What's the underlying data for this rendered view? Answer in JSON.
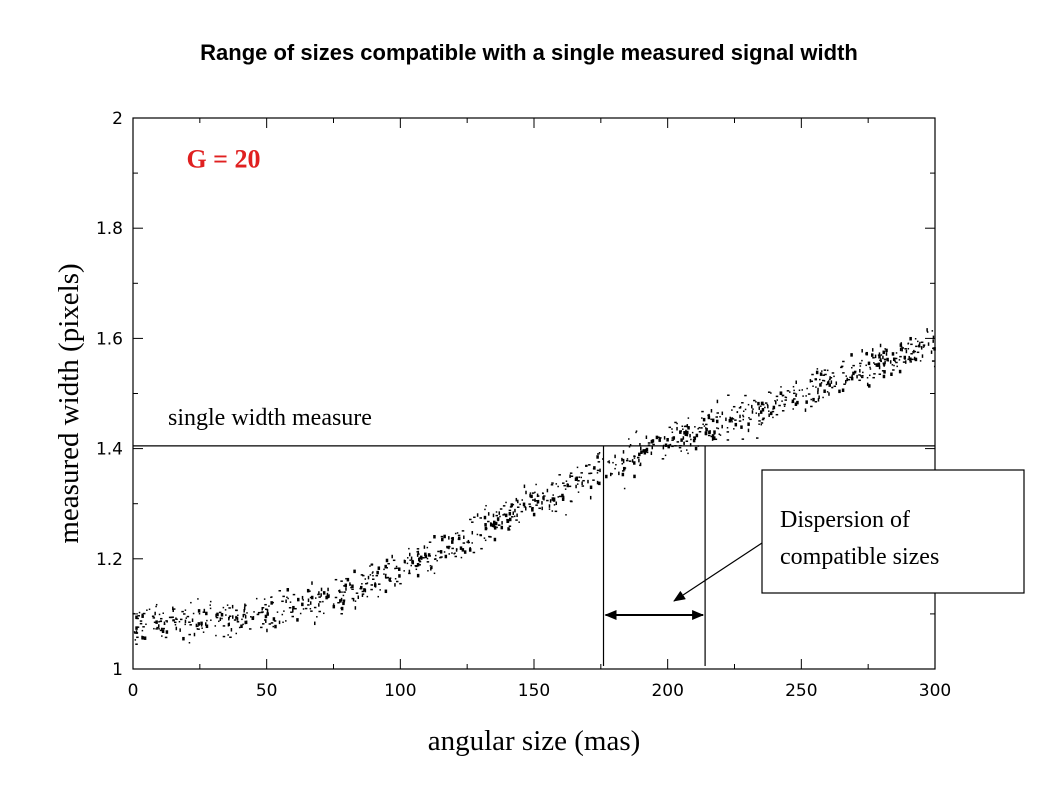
{
  "page": {
    "title": "Range of sizes compatible with a single measured signal width"
  },
  "chart_data": {
    "type": "scatter",
    "title": "Range of sizes compatible with a single measured signal width",
    "xlabel": "angular size (mas)",
    "ylabel": "measured width (pixels)",
    "xlim": [
      0,
      300
    ],
    "ylim": [
      1,
      2
    ],
    "xticks": [
      0,
      50,
      100,
      150,
      200,
      250,
      300
    ],
    "yticks": [
      1,
      1.2,
      1.4,
      1.6,
      1.8,
      2
    ],
    "x_tick_labels": [
      "0",
      "50",
      "100",
      "150",
      "200",
      "250",
      "300"
    ],
    "y_tick_labels": [
      "1",
      "1.2",
      "1.4",
      "1.6",
      "1.8",
      "2"
    ],
    "grid": false,
    "series": [
      {
        "trend": {
          "x": [
            0,
            25,
            50,
            75,
            100,
            125,
            150,
            175,
            200,
            225,
            250,
            275,
            300
          ],
          "y": [
            1.08,
            1.085,
            1.1,
            1.135,
            1.18,
            1.24,
            1.3,
            1.36,
            1.41,
            1.45,
            1.5,
            1.55,
            1.59
          ]
        },
        "scatter_spread": 0.03,
        "point_count": 1100,
        "color": "#000000"
      }
    ],
    "annotations": {
      "panel_label": {
        "text": "G = 20",
        "color": "#e02020",
        "x": 20,
        "y": 1.91
      },
      "measure_line": {
        "y": 1.405,
        "label": "single width measure"
      },
      "range_lines": {
        "x_low": 176,
        "x_high": 214
      },
      "dispersion_box": {
        "line1": "Dispersion of",
        "line2": "compatible sizes"
      }
    }
  }
}
